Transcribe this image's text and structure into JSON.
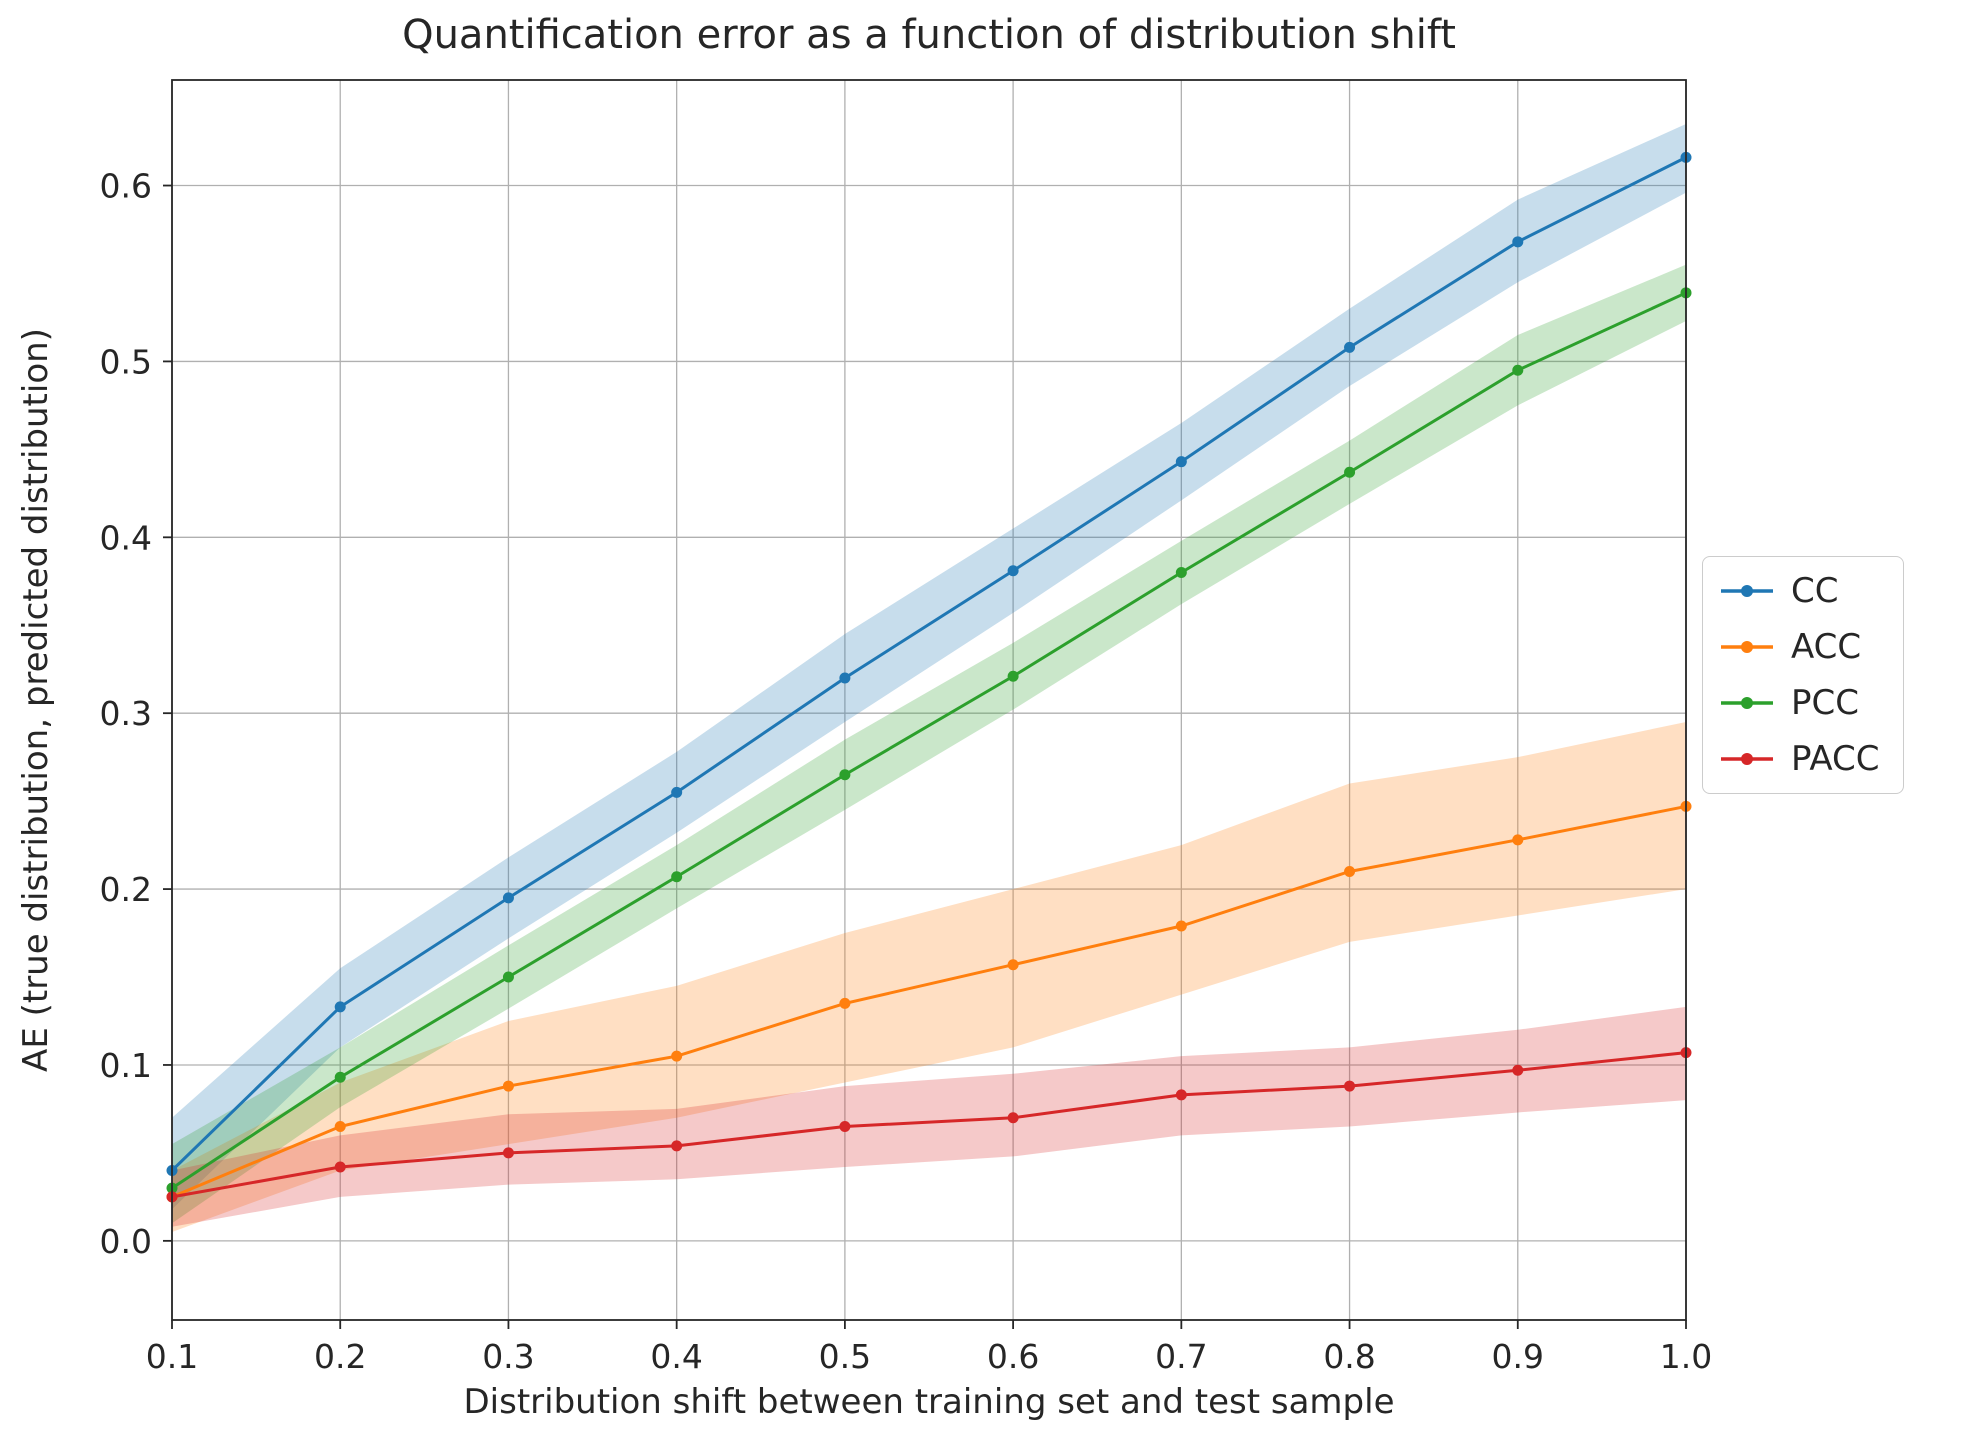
{
  "chart_data": {
    "type": "line",
    "title": "Quantification error as a function of distribution shift",
    "xlabel": "Distribution shift between training set and test sample",
    "ylabel": "AE (true distribution, predicted distribution)",
    "x": [
      0.1,
      0.2,
      0.3,
      0.4,
      0.5,
      0.6,
      0.7,
      0.8,
      0.9,
      1.0
    ],
    "xticks": [
      "0.1",
      "0.2",
      "0.3",
      "0.4",
      "0.5",
      "0.6",
      "0.7",
      "0.8",
      "0.9",
      "1.0"
    ],
    "yticks": [
      "0.0",
      "0.1",
      "0.2",
      "0.3",
      "0.4",
      "0.5",
      "0.6"
    ],
    "ytick_values": [
      0.0,
      0.1,
      0.2,
      0.3,
      0.4,
      0.5,
      0.6
    ],
    "xlim": [
      0.1,
      1.0
    ],
    "ylim": [
      -0.045,
      0.66
    ],
    "grid": true,
    "legend_position": "outside center right",
    "band_alpha": 0.25,
    "series": [
      {
        "name": "CC",
        "color": "#1f77b4",
        "values": [
          0.04,
          0.133,
          0.195,
          0.255,
          0.32,
          0.381,
          0.443,
          0.508,
          0.568,
          0.616
        ],
        "band_upper": [
          0.07,
          0.155,
          0.218,
          0.278,
          0.345,
          0.405,
          0.465,
          0.53,
          0.592,
          0.635
        ],
        "band_lower": [
          0.018,
          0.11,
          0.172,
          0.232,
          0.295,
          0.357,
          0.421,
          0.486,
          0.545,
          0.596
        ]
      },
      {
        "name": "ACC",
        "color": "#ff7f0e",
        "values": [
          0.025,
          0.065,
          0.088,
          0.105,
          0.135,
          0.157,
          0.179,
          0.21,
          0.228,
          0.247
        ],
        "band_upper": [
          0.04,
          0.09,
          0.125,
          0.145,
          0.175,
          0.2,
          0.225,
          0.26,
          0.275,
          0.295
        ],
        "band_lower": [
          0.005,
          0.04,
          0.055,
          0.07,
          0.09,
          0.11,
          0.14,
          0.17,
          0.185,
          0.2
        ]
      },
      {
        "name": "PCC",
        "color": "#2ca02c",
        "values": [
          0.03,
          0.093,
          0.15,
          0.207,
          0.265,
          0.321,
          0.38,
          0.437,
          0.495,
          0.539
        ],
        "band_upper": [
          0.055,
          0.11,
          0.168,
          0.225,
          0.285,
          0.34,
          0.398,
          0.455,
          0.515,
          0.555
        ],
        "band_lower": [
          0.01,
          0.076,
          0.132,
          0.189,
          0.245,
          0.302,
          0.362,
          0.419,
          0.475,
          0.523
        ]
      },
      {
        "name": "PACC",
        "color": "#d62728",
        "values": [
          0.025,
          0.042,
          0.05,
          0.054,
          0.065,
          0.07,
          0.083,
          0.088,
          0.097,
          0.107
        ],
        "band_upper": [
          0.04,
          0.06,
          0.072,
          0.075,
          0.088,
          0.095,
          0.105,
          0.11,
          0.12,
          0.133
        ],
        "band_lower": [
          0.008,
          0.025,
          0.032,
          0.035,
          0.042,
          0.048,
          0.06,
          0.065,
          0.073,
          0.08
        ]
      }
    ]
  }
}
